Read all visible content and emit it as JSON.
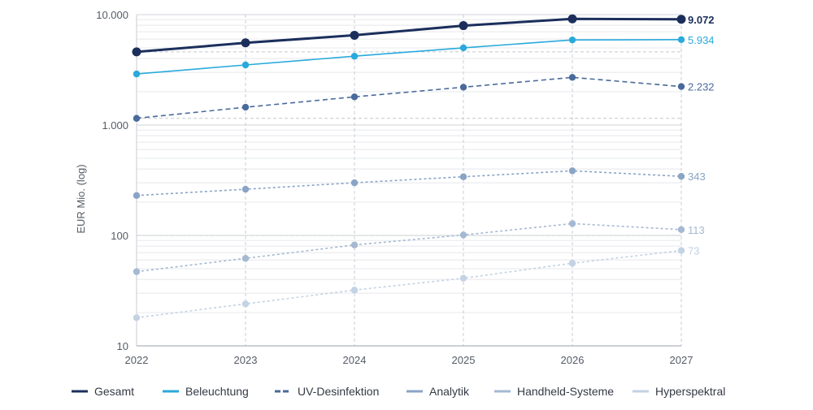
{
  "chart_data": {
    "type": "line",
    "title": "",
    "xlabel": "",
    "ylabel": "EUR Mio. (log)",
    "y_scale": "log",
    "ylim": [
      10,
      10000
    ],
    "y_ticks": [
      10,
      100,
      1000,
      10000
    ],
    "y_tick_labels": [
      "10",
      "100",
      "1.000",
      "10.000"
    ],
    "x": [
      2022,
      2023,
      2024,
      2025,
      2026,
      2027
    ],
    "x_tick_labels": [
      "2022",
      "2023",
      "2024",
      "2025",
      "2026",
      "2027"
    ],
    "grid": true,
    "legend_position": "bottom",
    "series": [
      {
        "name": "Gesamt",
        "values": [
          4600,
          5550,
          6500,
          7950,
          9150,
          9072
        ],
        "end_label": "9.072",
        "color": "#1c2f5c",
        "style": "solid",
        "bold": true
      },
      {
        "name": "Beleuchtung",
        "values": [
          2900,
          3500,
          4200,
          5000,
          5900,
          5934
        ],
        "end_label": "5.934",
        "color": "#29a9dc",
        "style": "solid",
        "bold": false
      },
      {
        "name": "UV-Desinfektion",
        "values": [
          1150,
          1450,
          1800,
          2200,
          2700,
          2232
        ],
        "end_label": "2.232",
        "color": "#4a6a9b",
        "style": "dash",
        "bold": false
      },
      {
        "name": "Analytik",
        "values": [
          230,
          262,
          300,
          340,
          385,
          343
        ],
        "end_label": "343",
        "color": "#8aa4c6",
        "style": "dot",
        "bold": false
      },
      {
        "name": "Handheld-Systeme",
        "values": [
          47,
          62,
          82,
          101,
          128,
          113
        ],
        "end_label": "113",
        "color": "#a5b9d2",
        "style": "dot",
        "bold": false
      },
      {
        "name": "Hyperspektral",
        "values": [
          18,
          24,
          32,
          41,
          56,
          73
        ],
        "end_label": "73",
        "color": "#c3d2e4",
        "style": "dot",
        "bold": false
      }
    ],
    "reference_lines": [
      4600,
      1150,
      100
    ]
  }
}
